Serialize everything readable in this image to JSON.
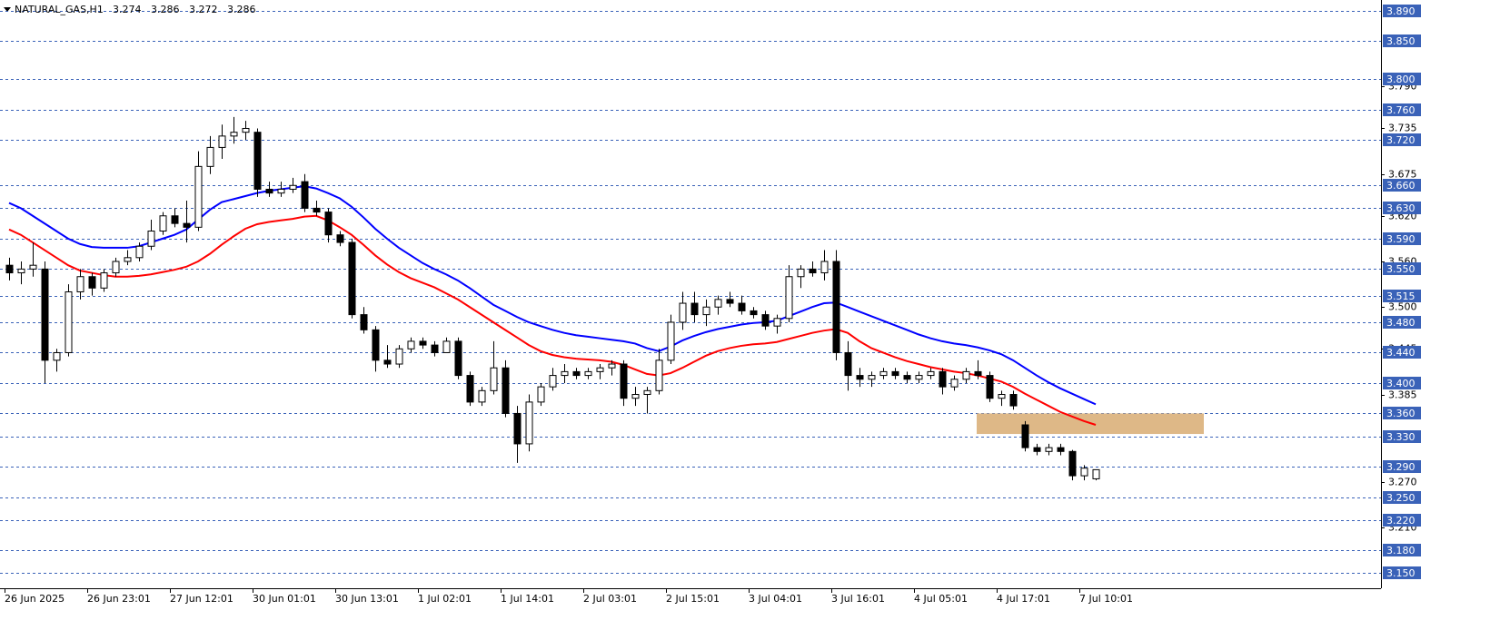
{
  "chart_data": {
    "type": "candlestick",
    "title": "NATURAL_GAS,H1",
    "quote": [
      3.274,
      3.286,
      3.272,
      3.286
    ],
    "categories": [
      "26 Jun 2025",
      null,
      null,
      null,
      null,
      null,
      null,
      "26 Jun 23:01",
      null,
      null,
      null,
      null,
      null,
      null,
      "27 Jun 12:01",
      null,
      null,
      null,
      null,
      null,
      null,
      "30 Jun 01:01",
      null,
      null,
      null,
      null,
      null,
      null,
      "30 Jun 13:01",
      null,
      null,
      null,
      null,
      null,
      null,
      "1 Jul 02:01",
      null,
      null,
      null,
      null,
      null,
      null,
      "1 Jul 14:01",
      null,
      null,
      null,
      null,
      null,
      null,
      "2 Jul 03:01",
      null,
      null,
      null,
      null,
      null,
      null,
      "2 Jul 15:01",
      null,
      null,
      null,
      null,
      null,
      null,
      "3 Jul 04:01",
      null,
      null,
      null,
      null,
      null,
      null,
      "3 Jul 16:01",
      null,
      null,
      null,
      null,
      null,
      null,
      "4 Jul 05:01",
      null,
      null,
      null,
      null,
      null,
      null,
      "4 Jul 17:01",
      null,
      null,
      null,
      null,
      null,
      null,
      "7 Jul 10:01",
      null
    ],
    "open": [
      3.555,
      3.545,
      3.55,
      3.55,
      3.43,
      3.44,
      3.52,
      3.54,
      3.525,
      3.545,
      3.56,
      3.565,
      3.58,
      3.6,
      3.62,
      3.61,
      3.605,
      3.685,
      3.71,
      3.725,
      3.73,
      3.73,
      3.655,
      3.65,
      3.655,
      3.665,
      3.63,
      3.625,
      3.595,
      3.585,
      3.49,
      3.47,
      3.43,
      3.425,
      3.445,
      3.455,
      3.45,
      3.44,
      3.455,
      3.41,
      3.375,
      3.39,
      3.42,
      3.36,
      3.32,
      3.375,
      3.395,
      3.41,
      3.415,
      3.41,
      3.415,
      3.42,
      3.425,
      3.38,
      3.385,
      3.39,
      3.43,
      3.48,
      3.505,
      3.49,
      3.5,
      3.51,
      3.505,
      3.495,
      3.49,
      3.475,
      3.485,
      3.54,
      3.55,
      3.545,
      3.56,
      3.44,
      3.41,
      3.405,
      3.41,
      3.415,
      3.41,
      3.405,
      3.41,
      3.415,
      3.395,
      3.405,
      3.415,
      3.41,
      3.38,
      3.385,
      3.345,
      3.315,
      3.31,
      3.315,
      3.31,
      3.278,
      3.274
    ],
    "high": [
      3.565,
      3.56,
      3.585,
      3.56,
      3.445,
      3.53,
      3.55,
      3.545,
      3.55,
      3.565,
      3.575,
      3.585,
      3.615,
      3.625,
      3.63,
      3.64,
      3.705,
      3.725,
      3.74,
      3.75,
      3.745,
      3.735,
      3.665,
      3.665,
      3.67,
      3.675,
      3.64,
      3.63,
      3.6,
      3.59,
      3.5,
      3.475,
      3.45,
      3.45,
      3.46,
      3.46,
      3.455,
      3.46,
      3.46,
      3.415,
      3.395,
      3.455,
      3.43,
      3.37,
      3.385,
      3.4,
      3.42,
      3.425,
      3.42,
      3.42,
      3.425,
      3.43,
      3.43,
      3.395,
      3.395,
      3.445,
      3.49,
      3.52,
      3.52,
      3.51,
      3.515,
      3.52,
      3.515,
      3.5,
      3.495,
      3.49,
      3.555,
      3.555,
      3.56,
      3.575,
      3.575,
      3.455,
      3.42,
      3.415,
      3.42,
      3.42,
      3.415,
      3.415,
      3.42,
      3.42,
      3.41,
      3.42,
      3.43,
      3.415,
      3.39,
      3.39,
      3.35,
      3.32,
      3.32,
      3.32,
      3.312,
      3.292,
      3.286
    ],
    "low": [
      3.535,
      3.53,
      3.54,
      3.4,
      3.415,
      3.435,
      3.51,
      3.515,
      3.52,
      3.54,
      3.555,
      3.56,
      3.575,
      3.595,
      3.605,
      3.585,
      3.6,
      3.675,
      3.695,
      3.715,
      3.72,
      3.645,
      3.645,
      3.645,
      3.65,
      3.625,
      3.62,
      3.585,
      3.58,
      3.485,
      3.465,
      3.415,
      3.42,
      3.42,
      3.44,
      3.445,
      3.435,
      3.44,
      3.405,
      3.37,
      3.37,
      3.385,
      3.355,
      3.295,
      3.31,
      3.37,
      3.39,
      3.4,
      3.405,
      3.405,
      3.405,
      3.41,
      3.37,
      3.37,
      3.36,
      3.385,
      3.425,
      3.47,
      3.48,
      3.475,
      3.49,
      3.5,
      3.49,
      3.485,
      3.47,
      3.465,
      3.48,
      3.525,
      3.54,
      3.535,
      3.43,
      3.39,
      3.395,
      3.395,
      3.405,
      3.405,
      3.4,
      3.4,
      3.405,
      3.385,
      3.39,
      3.4,
      3.405,
      3.375,
      3.37,
      3.365,
      3.31,
      3.305,
      3.305,
      3.305,
      3.272,
      3.272,
      3.272
    ],
    "close": [
      3.545,
      3.55,
      3.555,
      3.43,
      3.44,
      3.52,
      3.54,
      3.525,
      3.545,
      3.56,
      3.565,
      3.58,
      3.6,
      3.62,
      3.61,
      3.605,
      3.685,
      3.71,
      3.725,
      3.73,
      3.735,
      3.655,
      3.65,
      3.655,
      3.66,
      3.63,
      3.625,
      3.595,
      3.585,
      3.49,
      3.47,
      3.43,
      3.425,
      3.445,
      3.455,
      3.45,
      3.44,
      3.455,
      3.41,
      3.375,
      3.39,
      3.42,
      3.36,
      3.32,
      3.375,
      3.395,
      3.41,
      3.415,
      3.41,
      3.415,
      3.42,
      3.425,
      3.38,
      3.385,
      3.39,
      3.43,
      3.48,
      3.505,
      3.49,
      3.5,
      3.51,
      3.505,
      3.495,
      3.49,
      3.475,
      3.485,
      3.54,
      3.55,
      3.545,
      3.56,
      3.44,
      3.41,
      3.405,
      3.41,
      3.415,
      3.41,
      3.405,
      3.41,
      3.415,
      3.395,
      3.405,
      3.415,
      3.41,
      3.38,
      3.385,
      3.37,
      3.315,
      3.31,
      3.315,
      3.31,
      3.278,
      3.288,
      3.286
    ],
    "lines": [
      {
        "color": "#0000ff",
        "values": [
          3.637,
          3.63,
          3.62,
          3.61,
          3.6,
          3.59,
          3.583,
          3.579,
          3.578,
          3.578,
          3.578,
          3.58,
          3.585,
          3.59,
          3.595,
          3.602,
          3.615,
          3.628,
          3.638,
          3.642,
          3.646,
          3.65,
          3.653,
          3.655,
          3.657,
          3.659,
          3.656,
          3.65,
          3.643,
          3.632,
          3.618,
          3.603,
          3.59,
          3.578,
          3.568,
          3.558,
          3.55,
          3.543,
          3.535,
          3.525,
          3.514,
          3.503,
          3.495,
          3.487,
          3.48,
          3.475,
          3.47,
          3.466,
          3.463,
          3.461,
          3.459,
          3.457,
          3.455,
          3.452,
          3.446,
          3.442,
          3.448,
          3.456,
          3.462,
          3.467,
          3.471,
          3.474,
          3.477,
          3.479,
          3.48,
          3.482,
          3.488,
          3.494,
          3.5,
          3.505,
          3.506,
          3.5,
          3.494,
          3.488,
          3.482,
          3.476,
          3.47,
          3.464,
          3.459,
          3.455,
          3.452,
          3.45,
          3.447,
          3.443,
          3.438,
          3.43,
          3.42,
          3.41,
          3.401,
          3.393,
          3.386,
          3.379,
          3.372
        ]
      },
      {
        "color": "#ff0000",
        "values": [
          3.602,
          3.595,
          3.585,
          3.575,
          3.565,
          3.555,
          3.548,
          3.545,
          3.542,
          3.54,
          3.54,
          3.541,
          3.543,
          3.546,
          3.549,
          3.553,
          3.56,
          3.57,
          3.582,
          3.593,
          3.603,
          3.609,
          3.612,
          3.614,
          3.616,
          3.619,
          3.62,
          3.614,
          3.605,
          3.595,
          3.582,
          3.568,
          3.556,
          3.546,
          3.538,
          3.532,
          3.526,
          3.518,
          3.51,
          3.5,
          3.49,
          3.48,
          3.47,
          3.46,
          3.45,
          3.442,
          3.437,
          3.434,
          3.432,
          3.431,
          3.43,
          3.428,
          3.424,
          3.418,
          3.412,
          3.41,
          3.413,
          3.42,
          3.428,
          3.436,
          3.442,
          3.446,
          3.449,
          3.451,
          3.452,
          3.454,
          3.458,
          3.462,
          3.466,
          3.469,
          3.471,
          3.466,
          3.455,
          3.446,
          3.44,
          3.434,
          3.429,
          3.425,
          3.421,
          3.418,
          3.415,
          3.413,
          3.41,
          3.406,
          3.402,
          3.395,
          3.386,
          3.378,
          3.37,
          3.362,
          3.356,
          3.35,
          3.345
        ]
      }
    ],
    "zone": {
      "low": 3.333,
      "high": 3.36,
      "color": "#deb887"
    },
    "ylim": [
      3.13,
      3.904
    ],
    "yticks": [
      {
        "value": 3.79,
        "label": "3.790"
      },
      3.735,
      3.675,
      {
        "value": 3.62,
        "label": "3.620"
      },
      {
        "value": 3.56,
        "label": "3.560"
      },
      {
        "value": 3.5,
        "label": "3.500"
      },
      3.445,
      3.385,
      {
        "value": 3.27,
        "label": "3.270"
      },
      {
        "value": 3.21,
        "label": "3.210"
      }
    ],
    "levels": [
      {
        "value": 3.89,
        "label": "3.890"
      },
      {
        "value": 3.85,
        "label": "3.850"
      },
      {
        "value": 3.8,
        "label": "3.800"
      },
      {
        "value": 3.76,
        "label": "3.760"
      },
      {
        "value": 3.72,
        "label": "3.720"
      },
      {
        "value": 3.66,
        "label": "3.660"
      },
      {
        "value": 3.63,
        "label": "3.630"
      },
      {
        "value": 3.59,
        "label": "3.590"
      },
      {
        "value": 3.55,
        "label": "3.550"
      },
      3.515,
      {
        "value": 3.48,
        "label": "3.480"
      },
      {
        "value": 3.44,
        "label": "3.440"
      },
      {
        "value": 3.4,
        "label": "3.400"
      },
      {
        "value": 3.36,
        "label": "3.360"
      },
      {
        "value": 3.33,
        "label": "3.330"
      },
      {
        "value": 3.29,
        "label": "3.290"
      },
      {
        "value": 3.25,
        "label": "3.250"
      },
      {
        "value": 3.22,
        "label": "3.220"
      },
      {
        "value": 3.18,
        "label": "3.180"
      },
      {
        "value": 3.15,
        "label": "3.150"
      }
    ],
    "level_color": "#3a62b8"
  }
}
